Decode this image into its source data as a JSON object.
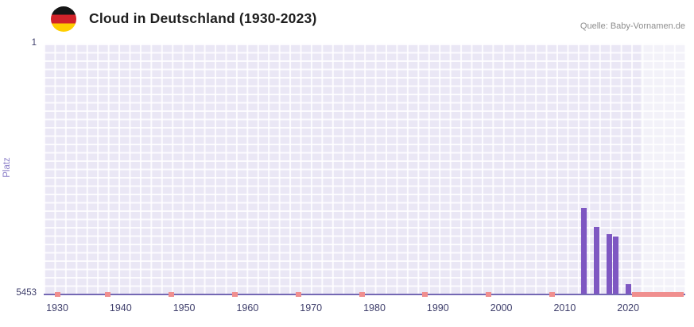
{
  "header": {
    "title": "Cloud in Deutschland (1930-2023)",
    "source": "Quelle: Baby-Vornamen.de",
    "flag_icon": "german-flag"
  },
  "chart_data": {
    "type": "bar",
    "title": "Cloud in Deutschland (1930-2023)",
    "xlabel": "",
    "ylabel": "Platz",
    "y_axis": {
      "top_label": "1",
      "bottom_label": "5453",
      "min": 1,
      "max": 5453,
      "inverted": true
    },
    "x_ticks": [
      1930,
      1940,
      1950,
      1960,
      1970,
      1980,
      1990,
      2000,
      2010,
      2020
    ],
    "x_range": [
      1928,
      2029
    ],
    "grid": true,
    "legend": false,
    "bars": [
      {
        "year": 2013,
        "rank": 3585
      },
      {
        "year": 2015,
        "rank": 4000
      },
      {
        "year": 2017,
        "rank": 4160
      },
      {
        "year": 2018,
        "rank": 4210
      },
      {
        "year": 2020,
        "rank": 5250
      }
    ],
    "not_ranked_years": [
      1930,
      1938,
      1948,
      1958,
      1968,
      1978,
      1988,
      1998,
      2008
    ],
    "not_ranked_band": [
      2021,
      2023
    ],
    "highlight_band_from_year": 2022,
    "colors": {
      "bar": "#7e57c2",
      "not_ranked_marker": "#f08f8f",
      "plot_background": "#eae7f5",
      "grid_line": "#ffffff",
      "highlight_band": "#f2f0f9",
      "axis_line": "#7468b4",
      "tick_text": "#3e3e6b",
      "ylabel_text": "#8a7dc8",
      "title_text": "#1f1f1f",
      "source_text": "#8d8d8d"
    }
  }
}
